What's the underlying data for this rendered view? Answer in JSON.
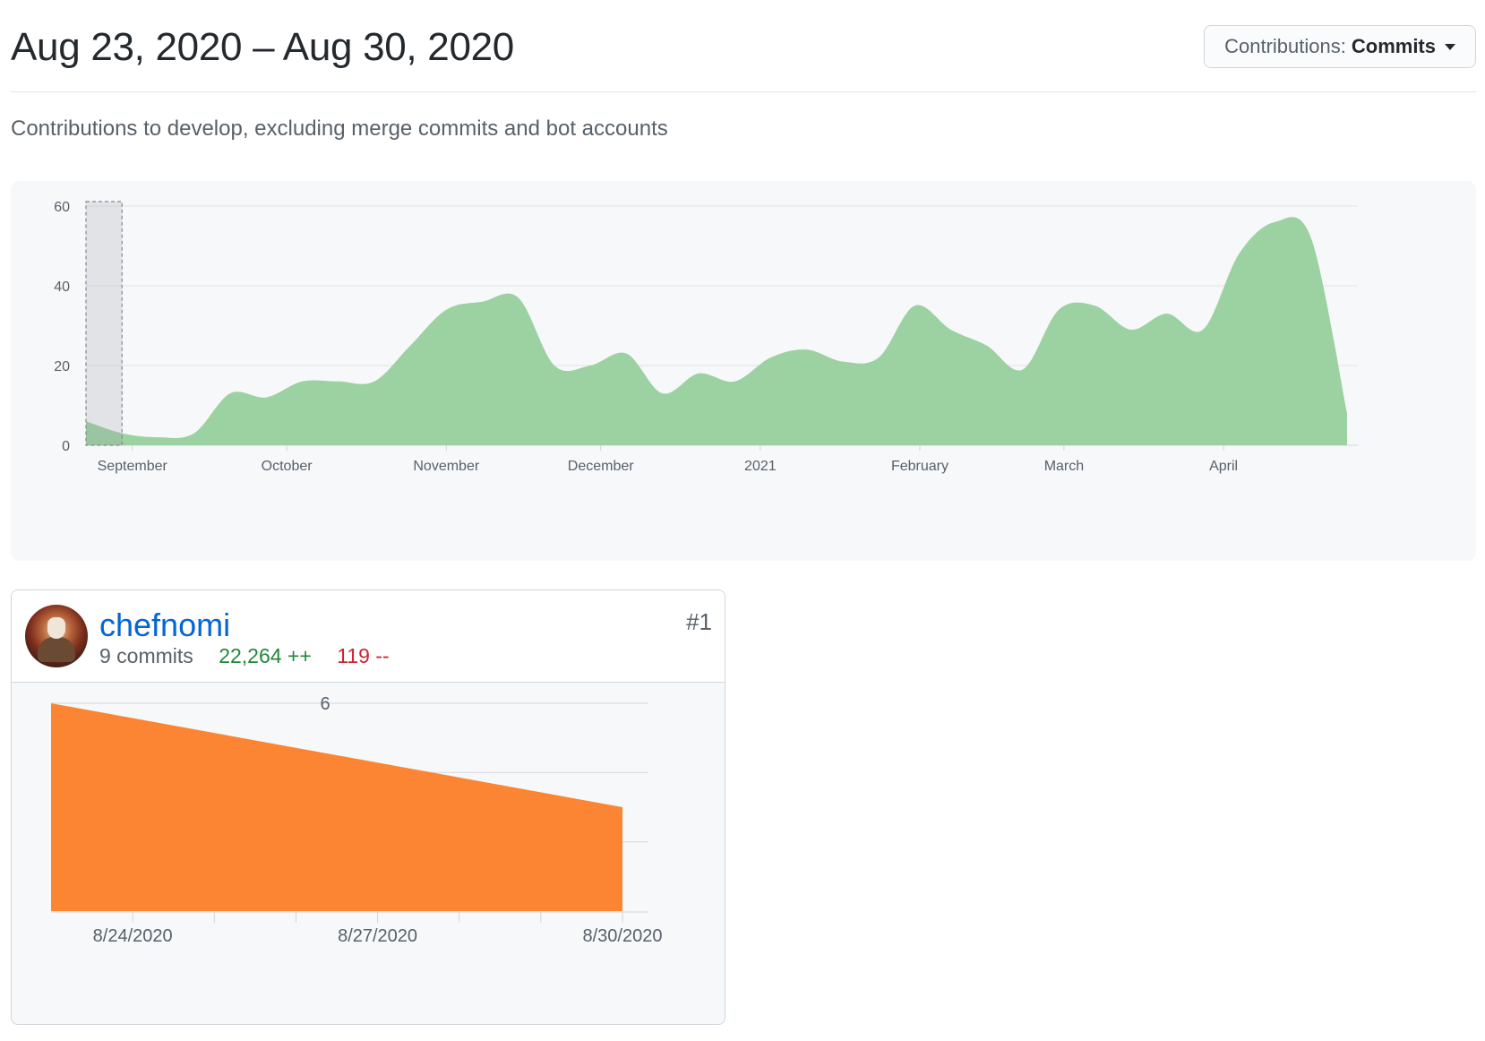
{
  "header": {
    "range_title": "Aug 23, 2020 – Aug 30, 2020",
    "contributions_label": "Contributions:",
    "contributions_value": "Commits"
  },
  "subtitle": "Contributions to develop, excluding merge commits and bot accounts",
  "chart_data": [
    {
      "type": "area",
      "color": "#9cd1a1",
      "ylim": [
        0,
        60
      ],
      "yticks": [
        0,
        20,
        40,
        60
      ],
      "x_tick_labels": [
        "September",
        "October",
        "November",
        "December",
        "2021",
        "February",
        "March",
        "April"
      ],
      "x": [
        "2020-08-23",
        "2020-08-30",
        "2020-09-06",
        "2020-09-13",
        "2020-09-20",
        "2020-09-27",
        "2020-10-04",
        "2020-10-11",
        "2020-10-18",
        "2020-10-25",
        "2020-11-01",
        "2020-11-08",
        "2020-11-15",
        "2020-11-22",
        "2020-11-29",
        "2020-12-06",
        "2020-12-13",
        "2020-12-20",
        "2020-12-27",
        "2021-01-03",
        "2021-01-10",
        "2021-01-17",
        "2021-01-24",
        "2021-01-31",
        "2021-02-07",
        "2021-02-14",
        "2021-02-21",
        "2021-02-28",
        "2021-03-07",
        "2021-03-14",
        "2021-03-21",
        "2021-03-28",
        "2021-04-04",
        "2021-04-11",
        "2021-04-18",
        "2021-04-25"
      ],
      "values": [
        6,
        3,
        2,
        3,
        13,
        12,
        16,
        16,
        16,
        25,
        34,
        36,
        37,
        20,
        20,
        23,
        13,
        18,
        16,
        22,
        24,
        21,
        22,
        35,
        29,
        25,
        19,
        34,
        35,
        29,
        33,
        29,
        48,
        56,
        52,
        8
      ],
      "highlight": [
        "2020-08-23",
        "2020-08-30"
      ],
      "grid": true
    },
    {
      "type": "area",
      "color": "#fb8532",
      "x_tick_labels": [
        "8/24/2020",
        "8/27/2020",
        "8/30/2020"
      ],
      "x": [
        "8/23/2020",
        "8/30/2020"
      ],
      "values": [
        6,
        3
      ],
      "ylim": [
        0,
        6
      ],
      "y_tick_labels": [
        "6"
      ],
      "grid": true
    }
  ],
  "contributor": {
    "name": "chefnomi",
    "rank": "#1",
    "commits": "9 commits",
    "additions": "22,264 ++",
    "deletions": "119 --"
  }
}
